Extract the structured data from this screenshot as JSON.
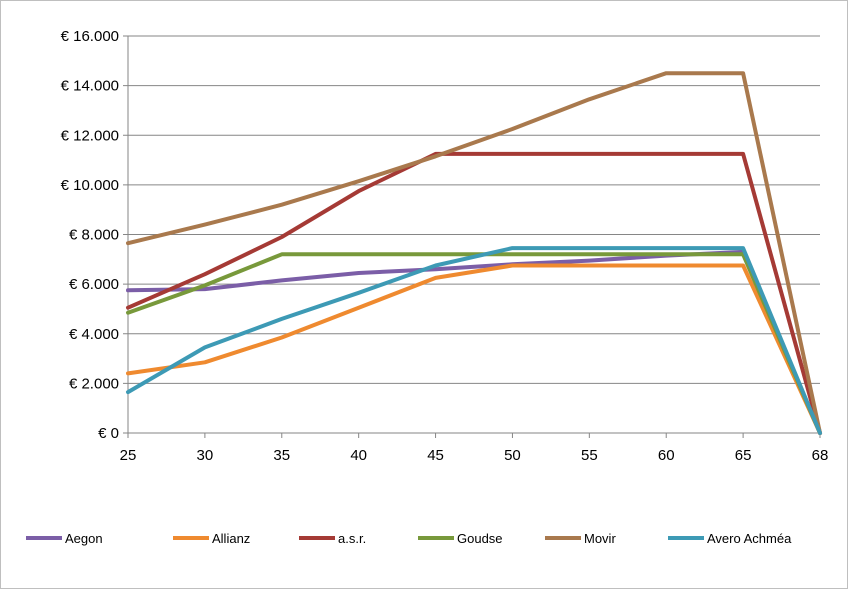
{
  "chart_data": {
    "type": "line",
    "title": "",
    "xlabel": "",
    "ylabel": "",
    "categories": [
      "25",
      "30",
      "35",
      "40",
      "45",
      "50",
      "55",
      "60",
      "65",
      "68"
    ],
    "y_tick_labels": [
      "€ 0",
      "€ 2.000",
      "€ 4.000",
      "€ 6.000",
      "€ 8.000",
      "€ 10.000",
      "€ 12.000",
      "€ 14.000",
      "€ 16.000"
    ],
    "y_ticks": [
      0,
      2000,
      4000,
      6000,
      8000,
      10000,
      12000,
      14000,
      16000
    ],
    "ylim": [
      0,
      16000
    ],
    "grid": "horizontal",
    "legend_position": "bottom",
    "series": [
      {
        "name": "Aegon",
        "color": "#7b5ea7",
        "values": [
          5750,
          5800,
          6150,
          6450,
          6600,
          6800,
          6950,
          7150,
          7300,
          0
        ]
      },
      {
        "name": "Allianz",
        "color": "#ef8a2f",
        "values": [
          2400,
          2850,
          3850,
          5050,
          6250,
          6750,
          6750,
          6750,
          6750,
          0
        ]
      },
      {
        "name": "a.s.r.",
        "color": "#a53a35",
        "values": [
          5050,
          6400,
          7900,
          9750,
          11250,
          11250,
          11250,
          11250,
          11250,
          0
        ]
      },
      {
        "name": "Goudse",
        "color": "#78993b",
        "values": [
          4850,
          5950,
          7200,
          7200,
          7200,
          7200,
          7200,
          7200,
          7200,
          0
        ]
      },
      {
        "name": "Movir",
        "color": "#a9794d",
        "values": [
          7650,
          8400,
          9200,
          10150,
          11150,
          12250,
          13450,
          14500,
          14500,
          0
        ]
      },
      {
        "name": "Avero Achméa",
        "color": "#3d9ab5",
        "values": [
          1650,
          3450,
          4600,
          5650,
          6750,
          7450,
          7450,
          7450,
          7450,
          0
        ]
      }
    ]
  }
}
